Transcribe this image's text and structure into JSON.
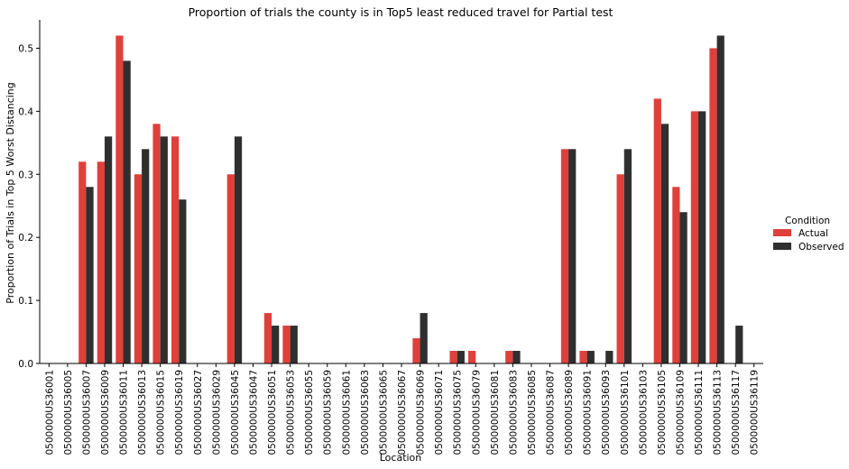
{
  "chart_data": {
    "type": "bar",
    "title": "Proportion of trials the county is in Top5 least reduced travel for Partial test",
    "xlabel": "Location",
    "ylabel": "Proportion of Trials in Top 5 Worst Distancing",
    "ylim": [
      0,
      0.545
    ],
    "yticks": [
      "0.0",
      "0.1",
      "0.2",
      "0.3",
      "0.4",
      "0.5"
    ],
    "grid": false,
    "legend": {
      "title": "Condition",
      "placement": "right"
    },
    "categories": [
      "0500000US36001",
      "0500000US36005",
      "0500000US36007",
      "0500000US36009",
      "0500000US36011",
      "0500000US36013",
      "0500000US36015",
      "0500000US36019",
      "0500000US36027",
      "0500000US36029",
      "0500000US36045",
      "0500000US36047",
      "0500000US36051",
      "0500000US36053",
      "0500000US36055",
      "0500000US36059",
      "0500000US36061",
      "0500000US36063",
      "0500000US36065",
      "0500000US36067",
      "0500000US36069",
      "0500000US36071",
      "0500000US36075",
      "0500000US36079",
      "0500000US36081",
      "0500000US36083",
      "0500000US36085",
      "0500000US36087",
      "0500000US36089",
      "0500000US36091",
      "0500000US36093",
      "0500000US36101",
      "0500000US36103",
      "0500000US36105",
      "0500000US36109",
      "0500000US36111",
      "0500000US36113",
      "0500000US36117",
      "0500000US36119"
    ],
    "series": [
      {
        "name": "Actual",
        "color": "#e0403a",
        "values": [
          0,
          0,
          0.32,
          0.32,
          0.52,
          0.3,
          0.38,
          0.36,
          0,
          0,
          0.3,
          0,
          0.08,
          0.06,
          0,
          0,
          0,
          0,
          0,
          0,
          0.04,
          0,
          0.02,
          0.02,
          0,
          0.02,
          0,
          0,
          0.34,
          0.02,
          0,
          0.3,
          0,
          0.42,
          0.28,
          0.4,
          0.5,
          0,
          0
        ]
      },
      {
        "name": "Observed",
        "color": "#2f2f2f",
        "values": [
          0,
          0,
          0.28,
          0.36,
          0.48,
          0.34,
          0.36,
          0.26,
          0,
          0,
          0.36,
          0,
          0.06,
          0.06,
          0,
          0,
          0,
          0,
          0,
          0,
          0.08,
          0,
          0.02,
          0,
          0,
          0.02,
          0,
          0,
          0.34,
          0.02,
          0.02,
          0.34,
          0,
          0.38,
          0.24,
          0.4,
          0.52,
          0.06,
          0
        ]
      }
    ]
  }
}
